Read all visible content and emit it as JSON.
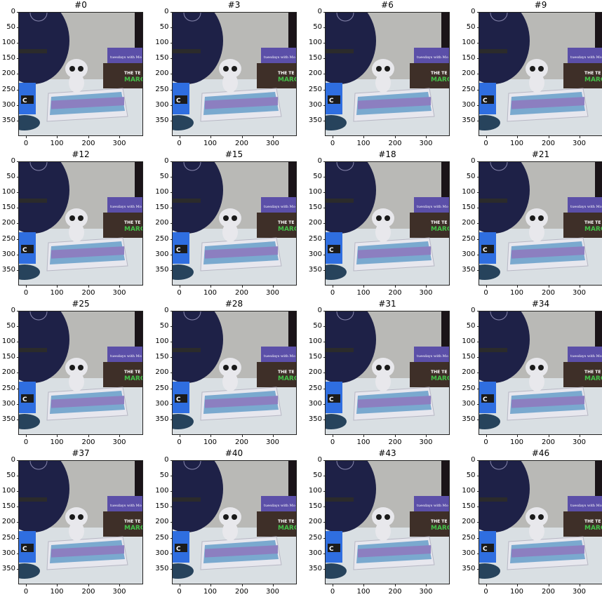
{
  "panels": [
    {
      "title": "#0"
    },
    {
      "title": "#3"
    },
    {
      "title": "#6"
    },
    {
      "title": "#9"
    },
    {
      "title": "#12"
    },
    {
      "title": "#15"
    },
    {
      "title": "#18"
    },
    {
      "title": "#21"
    },
    {
      "title": "#25"
    },
    {
      "title": "#28"
    },
    {
      "title": "#31"
    },
    {
      "title": "#34"
    },
    {
      "title": "#37"
    },
    {
      "title": "#40"
    },
    {
      "title": "#43"
    },
    {
      "title": "#46"
    }
  ],
  "y_ticks": [
    "0",
    "50",
    "100",
    "150",
    "200",
    "250",
    "300",
    "350"
  ],
  "x_ticks": [
    "0",
    "100",
    "200",
    "300"
  ],
  "scene": {
    "book_text_1": "tuesdays with Mo",
    "book_text_2": "THE TE",
    "book_text_3": "MARG",
    "blue_box_label": "C",
    "colors": {
      "wall": "#b9b9b6",
      "shelf": "#d9dfe3",
      "guitar": "#1e2147",
      "book_purple": "#5b4fa8",
      "book_brown": "#3e2f28",
      "book_green_text": "#44c24a",
      "blue_box": "#2f6ee0",
      "owl": "#e8e8ec"
    }
  }
}
